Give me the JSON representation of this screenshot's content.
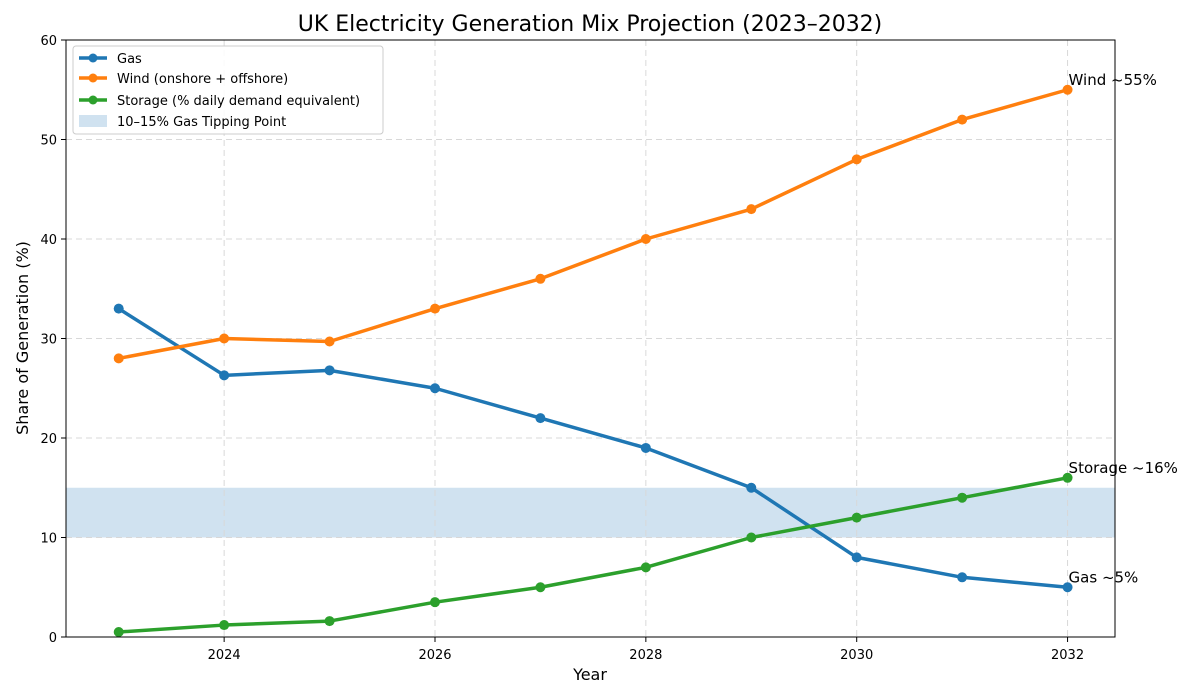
{
  "chart_data": {
    "type": "line",
    "title": "UK Electricity Generation Mix Projection (2023–2032)",
    "xlabel": "Year",
    "ylabel": "Share of Generation (%)",
    "xlim": [
      2022.5,
      2032.45
    ],
    "ylim": [
      0,
      60
    ],
    "x_ticks": [
      2024,
      2026,
      2028,
      2030,
      2032
    ],
    "y_ticks": [
      0,
      10,
      20,
      30,
      40,
      50,
      60
    ],
    "grid": true,
    "legend_position": "top-left",
    "x": [
      2023,
      2024,
      2025,
      2026,
      2027,
      2028,
      2029,
      2030,
      2031,
      2032
    ],
    "series": [
      {
        "name": "Gas",
        "color": "#1f77b4",
        "values": [
          33,
          26.3,
          26.8,
          25,
          22,
          19,
          15,
          8,
          6,
          5
        ]
      },
      {
        "name": "Wind (onshore + offshore)",
        "color": "#ff7f0e",
        "values": [
          28,
          30,
          29.7,
          33,
          36,
          40,
          43,
          48,
          52,
          55
        ]
      },
      {
        "name": "Storage (% daily demand equivalent)",
        "color": "#2ca02c",
        "values": [
          0.5,
          1.2,
          1.6,
          3.5,
          5,
          7,
          10,
          12,
          14,
          16
        ]
      }
    ],
    "band": {
      "name": "10–15% Gas Tipping Point",
      "y_from": 10,
      "y_to": 15,
      "color": "#bcd6ea"
    },
    "annotations": [
      {
        "text": "Wind ~55%",
        "x": 2032,
        "y": 55
      },
      {
        "text": "Storage ~16%",
        "x": 2032,
        "y": 16
      },
      {
        "text": "Gas ~5%",
        "x": 2032,
        "y": 5
      }
    ]
  }
}
